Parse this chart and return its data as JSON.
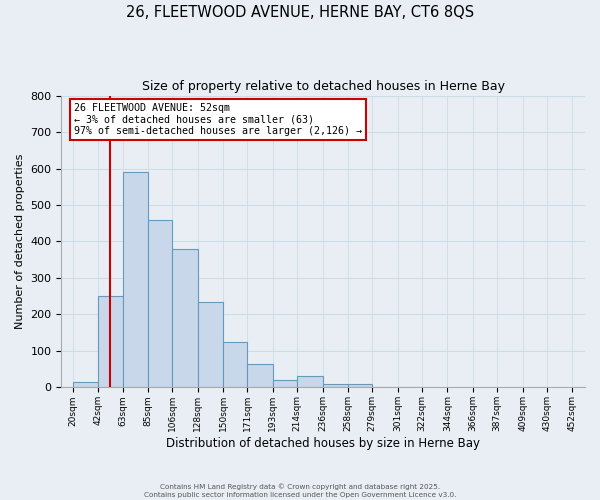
{
  "title": "26, FLEETWOOD AVENUE, HERNE BAY, CT6 8QS",
  "subtitle": "Size of property relative to detached houses in Herne Bay",
  "xlabel": "Distribution of detached houses by size in Herne Bay",
  "ylabel": "Number of detached properties",
  "bar_left_edges": [
    20,
    42,
    63,
    85,
    106,
    128,
    150,
    171,
    193,
    214,
    236,
    258,
    279,
    301,
    322,
    344,
    366,
    387,
    409,
    430
  ],
  "bar_widths": [
    22,
    21,
    22,
    21,
    22,
    22,
    21,
    22,
    21,
    22,
    22,
    21,
    22,
    21,
    22,
    22,
    21,
    22,
    21,
    22
  ],
  "bar_heights": [
    15,
    250,
    590,
    460,
    380,
    235,
    125,
    65,
    20,
    30,
    10,
    10,
    2,
    2,
    0,
    0,
    0,
    0,
    0,
    0
  ],
  "bar_facecolor": "#c8d8ea",
  "bar_edgecolor": "#6699bb",
  "x_tick_labels": [
    "20sqm",
    "42sqm",
    "63sqm",
    "85sqm",
    "106sqm",
    "128sqm",
    "150sqm",
    "171sqm",
    "193sqm",
    "214sqm",
    "236sqm",
    "258sqm",
    "279sqm",
    "301sqm",
    "322sqm",
    "344sqm",
    "366sqm",
    "387sqm",
    "409sqm",
    "430sqm",
    "452sqm"
  ],
  "x_tick_positions": [
    20,
    42,
    63,
    85,
    106,
    128,
    150,
    171,
    193,
    214,
    236,
    258,
    279,
    301,
    322,
    344,
    366,
    387,
    409,
    430,
    452
  ],
  "ylim": [
    0,
    800
  ],
  "xlim": [
    10,
    463
  ],
  "yticks": [
    0,
    100,
    200,
    300,
    400,
    500,
    600,
    700,
    800
  ],
  "property_line_x": 52,
  "property_line_color": "#cc0000",
  "annotation_title": "26 FLEETWOOD AVENUE: 52sqm",
  "annotation_line1": "← 3% of detached houses are smaller (63)",
  "annotation_line2": "97% of semi-detached houses are larger (2,126) →",
  "annotation_box_edgecolor": "#cc0000",
  "grid_color": "#ccdde8",
  "background_color": "#e8eef4",
  "footer_line1": "Contains HM Land Registry data © Crown copyright and database right 2025.",
  "footer_line2": "Contains public sector information licensed under the Open Government Licence v3.0."
}
